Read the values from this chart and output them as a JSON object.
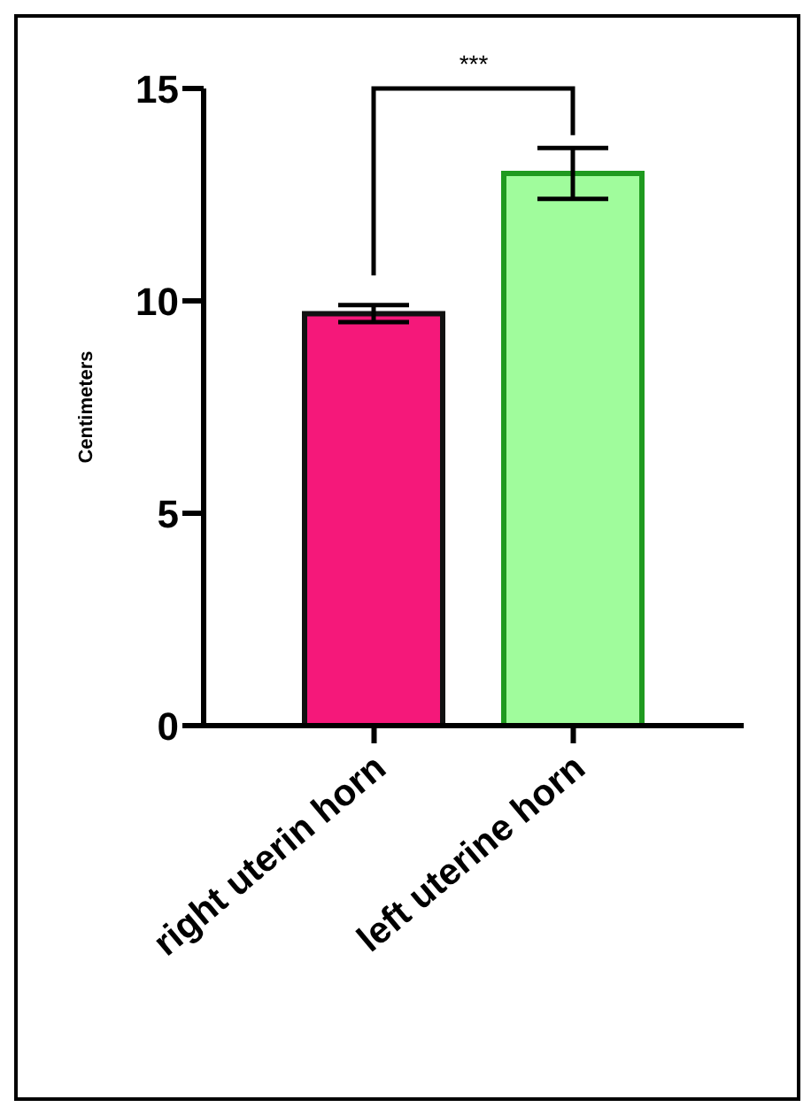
{
  "chart_data": {
    "type": "bar",
    "ylabel": "Centimeters",
    "categories": [
      "right uterin horn",
      "left uterine horn"
    ],
    "values": [
      9.7,
      13.0
    ],
    "errors": [
      0.2,
      0.6
    ],
    "colors": [
      "#f5187a",
      "#a0fc9c"
    ],
    "ylim": [
      0,
      15
    ],
    "yticks": [
      0,
      5,
      10,
      15
    ],
    "grid": false,
    "legend": false,
    "annotations": [
      "***"
    ]
  }
}
